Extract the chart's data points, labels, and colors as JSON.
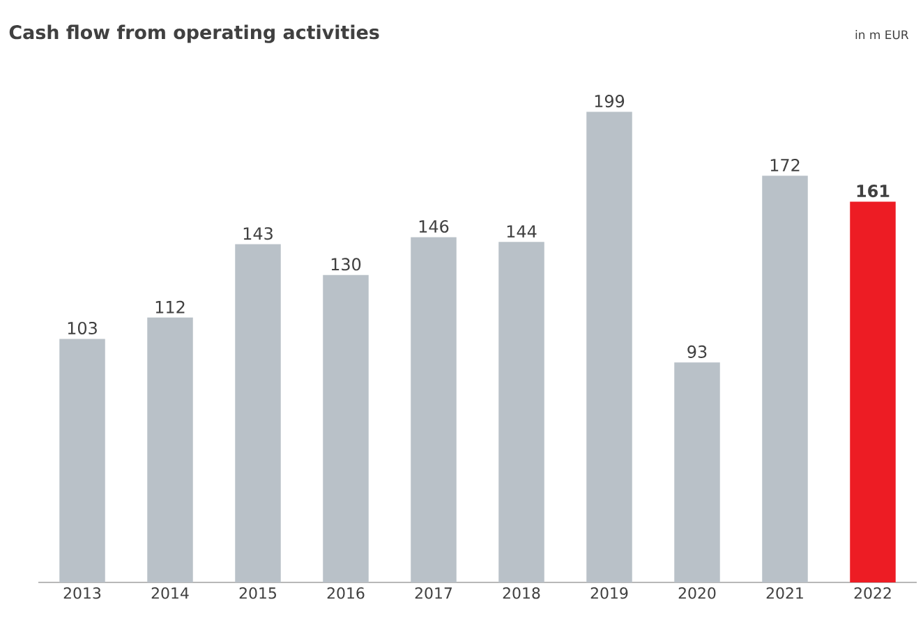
{
  "chart_data": {
    "type": "bar",
    "title": "Cash flow from operating activities",
    "subtitle": "in m EUR",
    "categories": [
      "2013",
      "2014",
      "2015",
      "2016",
      "2017",
      "2018",
      "2019",
      "2020",
      "2021",
      "2022"
    ],
    "values": [
      103,
      112,
      143,
      130,
      146,
      144,
      199,
      93,
      172,
      161
    ],
    "colors": [
      "#b9c1c8",
      "#b9c1c8",
      "#b9c1c8",
      "#b9c1c8",
      "#b9c1c8",
      "#b9c1c8",
      "#b9c1c8",
      "#b9c1c8",
      "#b9c1c8",
      "#ed1c24"
    ],
    "data_labels": true
  }
}
